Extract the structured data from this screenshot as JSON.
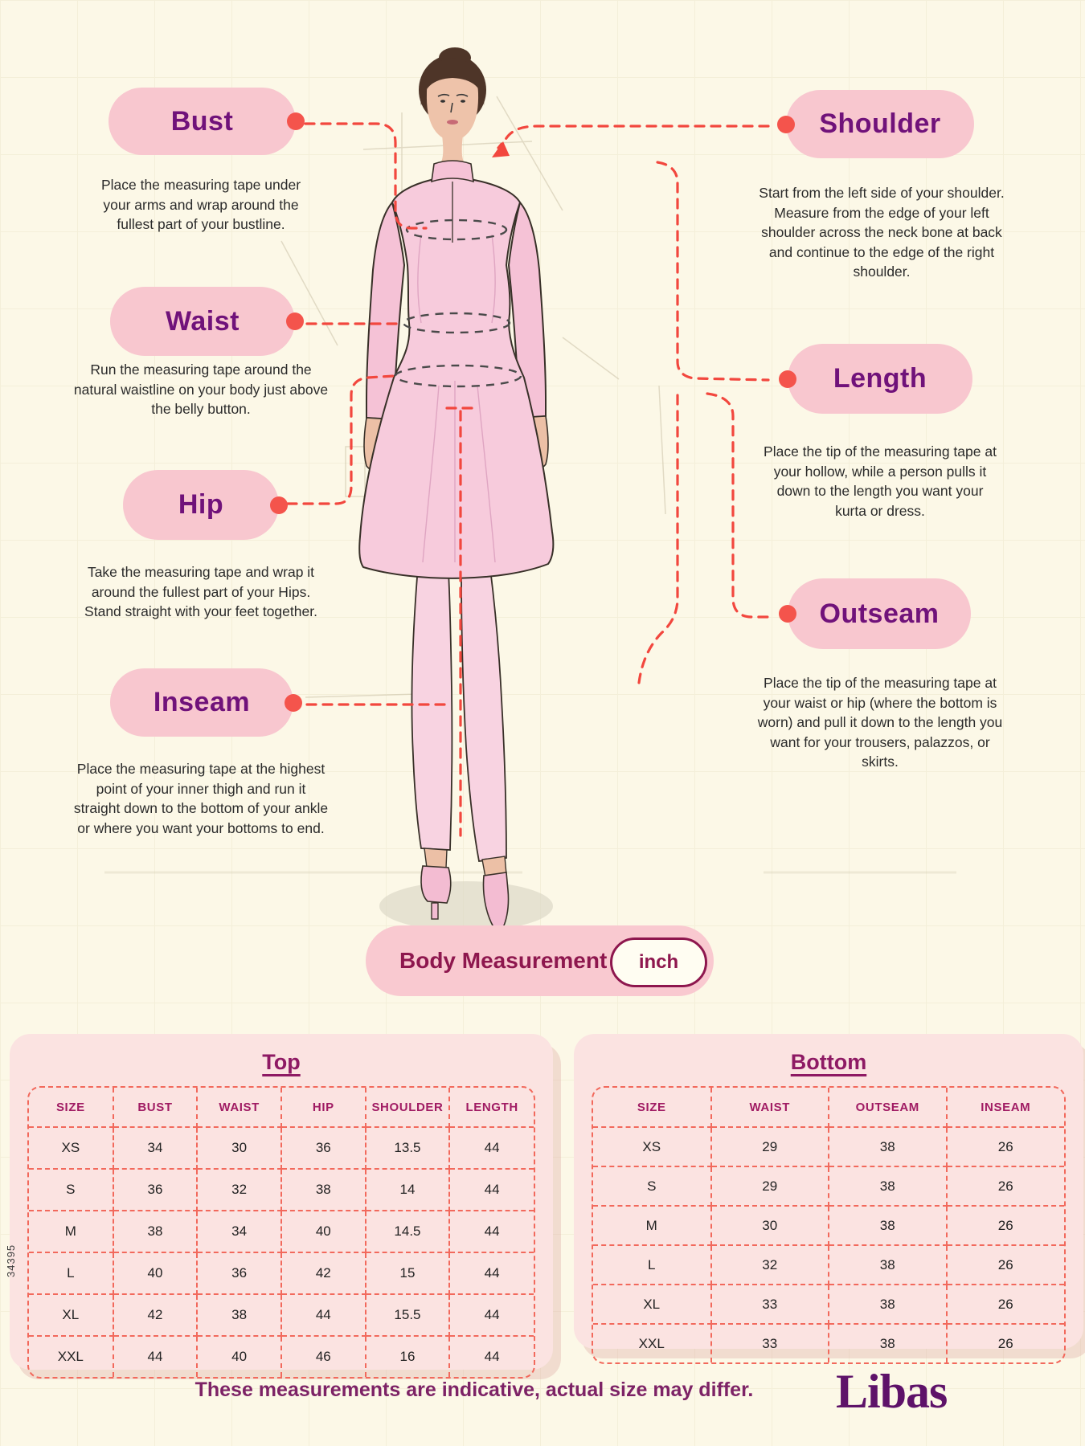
{
  "colors": {
    "background": "#FCF8E7",
    "pill_pink": "#F8C7CF",
    "label_purple": "#70127A",
    "connector_red": "#F2473E",
    "dot_red": "#F4544C",
    "card_pink": "#FBE3E1",
    "table_dash": "#F2695C",
    "header_magenta": "#A01B63",
    "title_magenta": "#8E1A64",
    "badge_text": "#8E174E",
    "footer_purple": "#7D2366"
  },
  "labels": [
    {
      "title": "Bust",
      "desc": "Place the measuring tape under your arms and wrap around the fullest part of your bustline."
    },
    {
      "title": "Waist",
      "desc": "Run the measuring tape around the natural waistline on your body just above the belly button."
    },
    {
      "title": "Hip",
      "desc": "Take the measuring tape and wrap it around the fullest part of your Hips. Stand straight with your feet together."
    },
    {
      "title": "Inseam",
      "desc": "Place the measuring tape at the highest point of your inner thigh and run it straight down to the bottom of your ankle or where you want your bottoms to end."
    },
    {
      "title": "Shoulder",
      "desc": "Start from the left side of your shoulder. Measure from the edge of your left shoulder across the neck bone at back and continue to the edge of the right shoulder."
    },
    {
      "title": "Length",
      "desc": "Place the tip of the measuring tape at your hollow, while a person pulls it down to the length you want your kurta or dress."
    },
    {
      "title": "Outseam",
      "desc": "Place the tip of the measuring tape at your waist or hip (where the bottom is worn) and pull it down to the length you want for your trousers, palazzos, or skirts."
    }
  ],
  "badge": {
    "label": "Body Measurement",
    "unit": "inch"
  },
  "tables": [
    {
      "title": "Top",
      "headers": [
        "SIZE",
        "BUST",
        "WAIST",
        "HIP",
        "SHOULDER",
        "LENGTH"
      ],
      "rows": [
        [
          "XS",
          "34",
          "30",
          "36",
          "13.5",
          "44"
        ],
        [
          "S",
          "36",
          "32",
          "38",
          "14",
          "44"
        ],
        [
          "M",
          "38",
          "34",
          "40",
          "14.5",
          "44"
        ],
        [
          "L",
          "40",
          "36",
          "42",
          "15",
          "44"
        ],
        [
          "XL",
          "42",
          "38",
          "44",
          "15.5",
          "44"
        ],
        [
          "XXL",
          "44",
          "40",
          "46",
          "16",
          "44"
        ]
      ]
    },
    {
      "title": "Bottom",
      "headers": [
        "SIZE",
        "WAIST",
        "OUTSEAM",
        "INSEAM"
      ],
      "rows": [
        [
          "XS",
          "29",
          "38",
          "26"
        ],
        [
          "S",
          "29",
          "38",
          "26"
        ],
        [
          "M",
          "30",
          "38",
          "26"
        ],
        [
          "L",
          "32",
          "38",
          "26"
        ],
        [
          "XL",
          "33",
          "38",
          "26"
        ],
        [
          "XXL",
          "33",
          "38",
          "26"
        ]
      ]
    }
  ],
  "footer": {
    "note": "These measurements are indicative, actual size may differ.",
    "brand": "Libas",
    "code": "34395"
  }
}
